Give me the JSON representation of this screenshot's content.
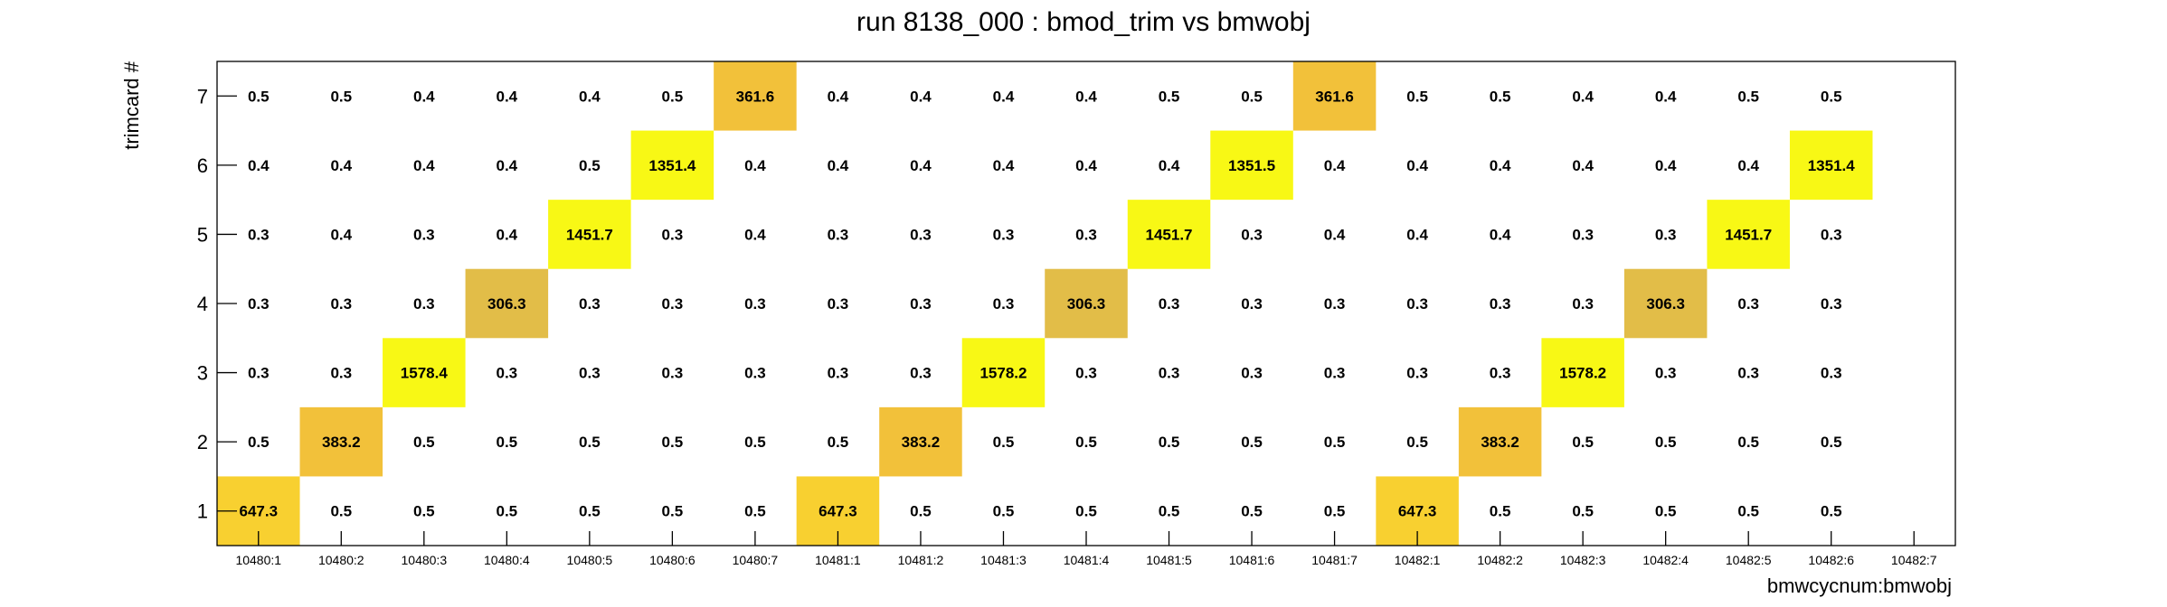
{
  "chart_data": {
    "type": "heatmap",
    "title": "run 8138_000 : bmod_trim vs bmwobj",
    "xlabel": "bmwcycnum:bmwobj",
    "ylabel": "trimcard #",
    "x_categories": [
      "10480:1",
      "10480:2",
      "10480:3",
      "10480:4",
      "10480:5",
      "10480:6",
      "10480:7",
      "10481:1",
      "10481:2",
      "10481:3",
      "10481:4",
      "10481:5",
      "10481:6",
      "10481:7",
      "10482:1",
      "10482:2",
      "10482:3",
      "10482:4",
      "10482:5",
      "10482:6",
      "10482:7"
    ],
    "y_categories": [
      "1",
      "2",
      "3",
      "4",
      "5",
      "6",
      "7"
    ],
    "grid": false,
    "values": [
      [
        "647.3",
        "0.5",
        "0.5",
        "0.5",
        "0.5",
        "0.5",
        "0.5",
        "647.3",
        "0.5",
        "0.5",
        "0.5",
        "0.5",
        "0.5",
        "0.5",
        "647.3",
        "0.5",
        "0.5",
        "0.5",
        "0.5",
        "0.5",
        null
      ],
      [
        "0.5",
        "383.2",
        "0.5",
        "0.5",
        "0.5",
        "0.5",
        "0.5",
        "0.5",
        "383.2",
        "0.5",
        "0.5",
        "0.5",
        "0.5",
        "0.5",
        "0.5",
        "383.2",
        "0.5",
        "0.5",
        "0.5",
        "0.5",
        null
      ],
      [
        "0.3",
        "0.3",
        "1578.4",
        "0.3",
        "0.3",
        "0.3",
        "0.3",
        "0.3",
        "0.3",
        "1578.2",
        "0.3",
        "0.3",
        "0.3",
        "0.3",
        "0.3",
        "0.3",
        "1578.2",
        "0.3",
        "0.3",
        "0.3",
        null
      ],
      [
        "0.3",
        "0.3",
        "0.3",
        "306.3",
        "0.3",
        "0.3",
        "0.3",
        "0.3",
        "0.3",
        "0.3",
        "306.3",
        "0.3",
        "0.3",
        "0.3",
        "0.3",
        "0.3",
        "0.3",
        "306.3",
        "0.3",
        "0.3",
        null
      ],
      [
        "0.3",
        "0.4",
        "0.3",
        "0.4",
        "1451.7",
        "0.3",
        "0.4",
        "0.3",
        "0.3",
        "0.3",
        "0.3",
        "1451.7",
        "0.3",
        "0.4",
        "0.4",
        "0.4",
        "0.3",
        "0.3",
        "1451.7",
        "0.3",
        null
      ],
      [
        "0.4",
        "0.4",
        "0.4",
        "0.4",
        "0.5",
        "1351.4",
        "0.4",
        "0.4",
        "0.4",
        "0.4",
        "0.4",
        "0.4",
        "1351.5",
        "0.4",
        "0.4",
        "0.4",
        "0.4",
        "0.4",
        "0.4",
        "1351.4",
        null
      ],
      [
        "0.5",
        "0.5",
        "0.4",
        "0.4",
        "0.4",
        "0.5",
        "361.6",
        "0.4",
        "0.4",
        "0.4",
        "0.4",
        "0.5",
        "0.5",
        "361.6",
        "0.5",
        "0.5",
        "0.4",
        "0.4",
        "0.5",
        "0.5",
        null
      ]
    ],
    "colors": {
      "high": "#f8f815",
      "mid_high": "#f8d030",
      "mid": "#f2c13a",
      "low": "#e2bd48",
      "axis": "#000000"
    }
  }
}
